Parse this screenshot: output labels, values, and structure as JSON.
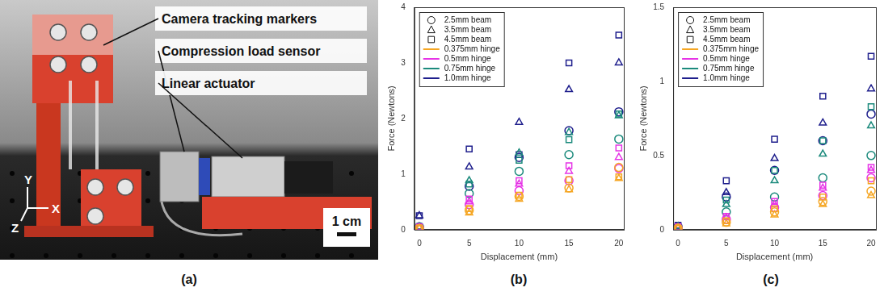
{
  "figure_a": {
    "panel_label": "(a)",
    "annotations": [
      "Camera tracking markers",
      "Compression load sensor",
      "Linear actuator"
    ],
    "scale_bar": "1 cm",
    "axis_labels": [
      "Y",
      "X",
      "Z"
    ]
  },
  "chart_data": [
    {
      "type": "scatter",
      "panel_label": "(b)",
      "x_label": "Displacement (mm)",
      "y_label": "Force (Newtons)",
      "x": [
        0,
        5,
        10,
        15,
        20
      ],
      "xlim": [
        -0.5,
        20.5
      ],
      "xticks": [
        0,
        5,
        10,
        15,
        20
      ],
      "ylim": [
        0,
        4
      ],
      "yticks": [
        0,
        1,
        2,
        3,
        4
      ],
      "grid": false,
      "legend": "upper left",
      "beams": [
        {
          "name": "2.5mm beam",
          "marker": "circle"
        },
        {
          "name": "3.5mm beam",
          "marker": "triangle"
        },
        {
          "name": "4.5mm beam",
          "marker": "square"
        }
      ],
      "hinges": [
        {
          "name": "0.375mm hinge",
          "color": "#f5a623"
        },
        {
          "name": "0.5mm hinge",
          "color": "#e633e6"
        },
        {
          "name": "0.75mm hinge",
          "color": "#1b8a7c"
        },
        {
          "name": "1.0mm hinge",
          "color": "#1e1e8c"
        }
      ],
      "series": [
        {
          "beam": "2.5mm beam",
          "hinge": "0.375mm hinge",
          "values": [
            0.02,
            0.35,
            0.6,
            0.75,
            1.12
          ]
        },
        {
          "beam": "3.5mm beam",
          "hinge": "0.375mm hinge",
          "values": [
            0.02,
            0.3,
            0.55,
            0.72,
            0.92
          ]
        },
        {
          "beam": "4.5mm beam",
          "hinge": "0.375mm hinge",
          "values": [
            0.03,
            0.38,
            0.62,
            0.9,
            0.95
          ]
        },
        {
          "beam": "2.5mm beam",
          "hinge": "0.5mm hinge",
          "values": [
            0.03,
            0.45,
            0.7,
            0.88,
            1.1
          ]
        },
        {
          "beam": "3.5mm beam",
          "hinge": "0.5mm hinge",
          "values": [
            0.04,
            0.5,
            0.82,
            1.05,
            1.3
          ]
        },
        {
          "beam": "4.5mm beam",
          "hinge": "0.5mm hinge",
          "values": [
            0.05,
            0.55,
            0.88,
            1.15,
            1.47
          ]
        },
        {
          "beam": "2.5mm beam",
          "hinge": "0.75mm hinge",
          "values": [
            0.04,
            0.65,
            1.05,
            1.35,
            1.63
          ]
        },
        {
          "beam": "3.5mm beam",
          "hinge": "0.75mm hinge",
          "values": [
            0.05,
            0.88,
            1.38,
            1.75,
            2.05
          ]
        },
        {
          "beam": "4.5mm beam",
          "hinge": "0.75mm hinge",
          "values": [
            0.06,
            0.82,
            1.25,
            1.62,
            2.08
          ]
        },
        {
          "beam": "2.5mm beam",
          "hinge": "1.0mm hinge",
          "values": [
            0.05,
            0.78,
            1.3,
            1.78,
            2.12
          ]
        },
        {
          "beam": "3.5mm beam",
          "hinge": "1.0mm hinge",
          "values": [
            0.25,
            1.13,
            1.93,
            2.52,
            3.0
          ]
        },
        {
          "beam": "4.5mm beam",
          "hinge": "1.0mm hinge",
          "values": [
            0.25,
            1.45,
            1.35,
            3.0,
            3.5
          ]
        }
      ]
    },
    {
      "type": "scatter",
      "panel_label": "(c)",
      "x_label": "Displacement (mm)",
      "y_label": "Force (Newtons)",
      "x": [
        0,
        5,
        10,
        15,
        20
      ],
      "xlim": [
        -0.5,
        20.5
      ],
      "xticks": [
        0,
        5,
        10,
        15,
        20
      ],
      "ylim": [
        0,
        1.5
      ],
      "yticks": [
        0,
        0.5,
        1,
        1.5
      ],
      "grid": false,
      "legend": "upper left",
      "beams": [
        {
          "name": "2.5mm beam",
          "marker": "circle"
        },
        {
          "name": "3.5mm beam",
          "marker": "triangle"
        },
        {
          "name": "4.5mm beam",
          "marker": "square"
        }
      ],
      "hinges": [
        {
          "name": "0.375mm hinge",
          "color": "#f5a623"
        },
        {
          "name": "0.5mm hinge",
          "color": "#e633e6"
        },
        {
          "name": "0.75mm hinge",
          "color": "#1b8a7c"
        },
        {
          "name": "1.0mm hinge",
          "color": "#1e1e8c"
        }
      ],
      "series": [
        {
          "beam": "2.5mm beam",
          "hinge": "0.375mm hinge",
          "values": [
            0.01,
            0.05,
            0.12,
            0.19,
            0.26
          ]
        },
        {
          "beam": "3.5mm beam",
          "hinge": "0.375mm hinge",
          "values": [
            0.01,
            0.04,
            0.1,
            0.17,
            0.23
          ]
        },
        {
          "beam": "4.5mm beam",
          "hinge": "0.375mm hinge",
          "values": [
            0.01,
            0.06,
            0.14,
            0.22,
            0.33
          ]
        },
        {
          "beam": "2.5mm beam",
          "hinge": "0.5mm hinge",
          "values": [
            0.01,
            0.07,
            0.15,
            0.23,
            0.35
          ]
        },
        {
          "beam": "3.5mm beam",
          "hinge": "0.5mm hinge",
          "values": [
            0.01,
            0.08,
            0.17,
            0.28,
            0.4
          ]
        },
        {
          "beam": "4.5mm beam",
          "hinge": "0.5mm hinge",
          "values": [
            0.02,
            0.09,
            0.19,
            0.3,
            0.42
          ]
        },
        {
          "beam": "2.5mm beam",
          "hinge": "0.75mm hinge",
          "values": [
            0.01,
            0.12,
            0.22,
            0.35,
            0.5
          ]
        },
        {
          "beam": "3.5mm beam",
          "hinge": "0.75mm hinge",
          "values": [
            0.02,
            0.17,
            0.33,
            0.51,
            0.7
          ]
        },
        {
          "beam": "4.5mm beam",
          "hinge": "0.75mm hinge",
          "values": [
            0.02,
            0.2,
            0.4,
            0.6,
            0.83
          ]
        },
        {
          "beam": "2.5mm beam",
          "hinge": "1.0mm hinge",
          "values": [
            0.02,
            0.22,
            0.4,
            0.6,
            0.78
          ]
        },
        {
          "beam": "3.5mm beam",
          "hinge": "1.0mm hinge",
          "values": [
            0.02,
            0.25,
            0.48,
            0.72,
            0.95
          ]
        },
        {
          "beam": "4.5mm beam",
          "hinge": "1.0mm hinge",
          "values": [
            0.03,
            0.33,
            0.61,
            0.9,
            1.17
          ]
        }
      ]
    }
  ]
}
